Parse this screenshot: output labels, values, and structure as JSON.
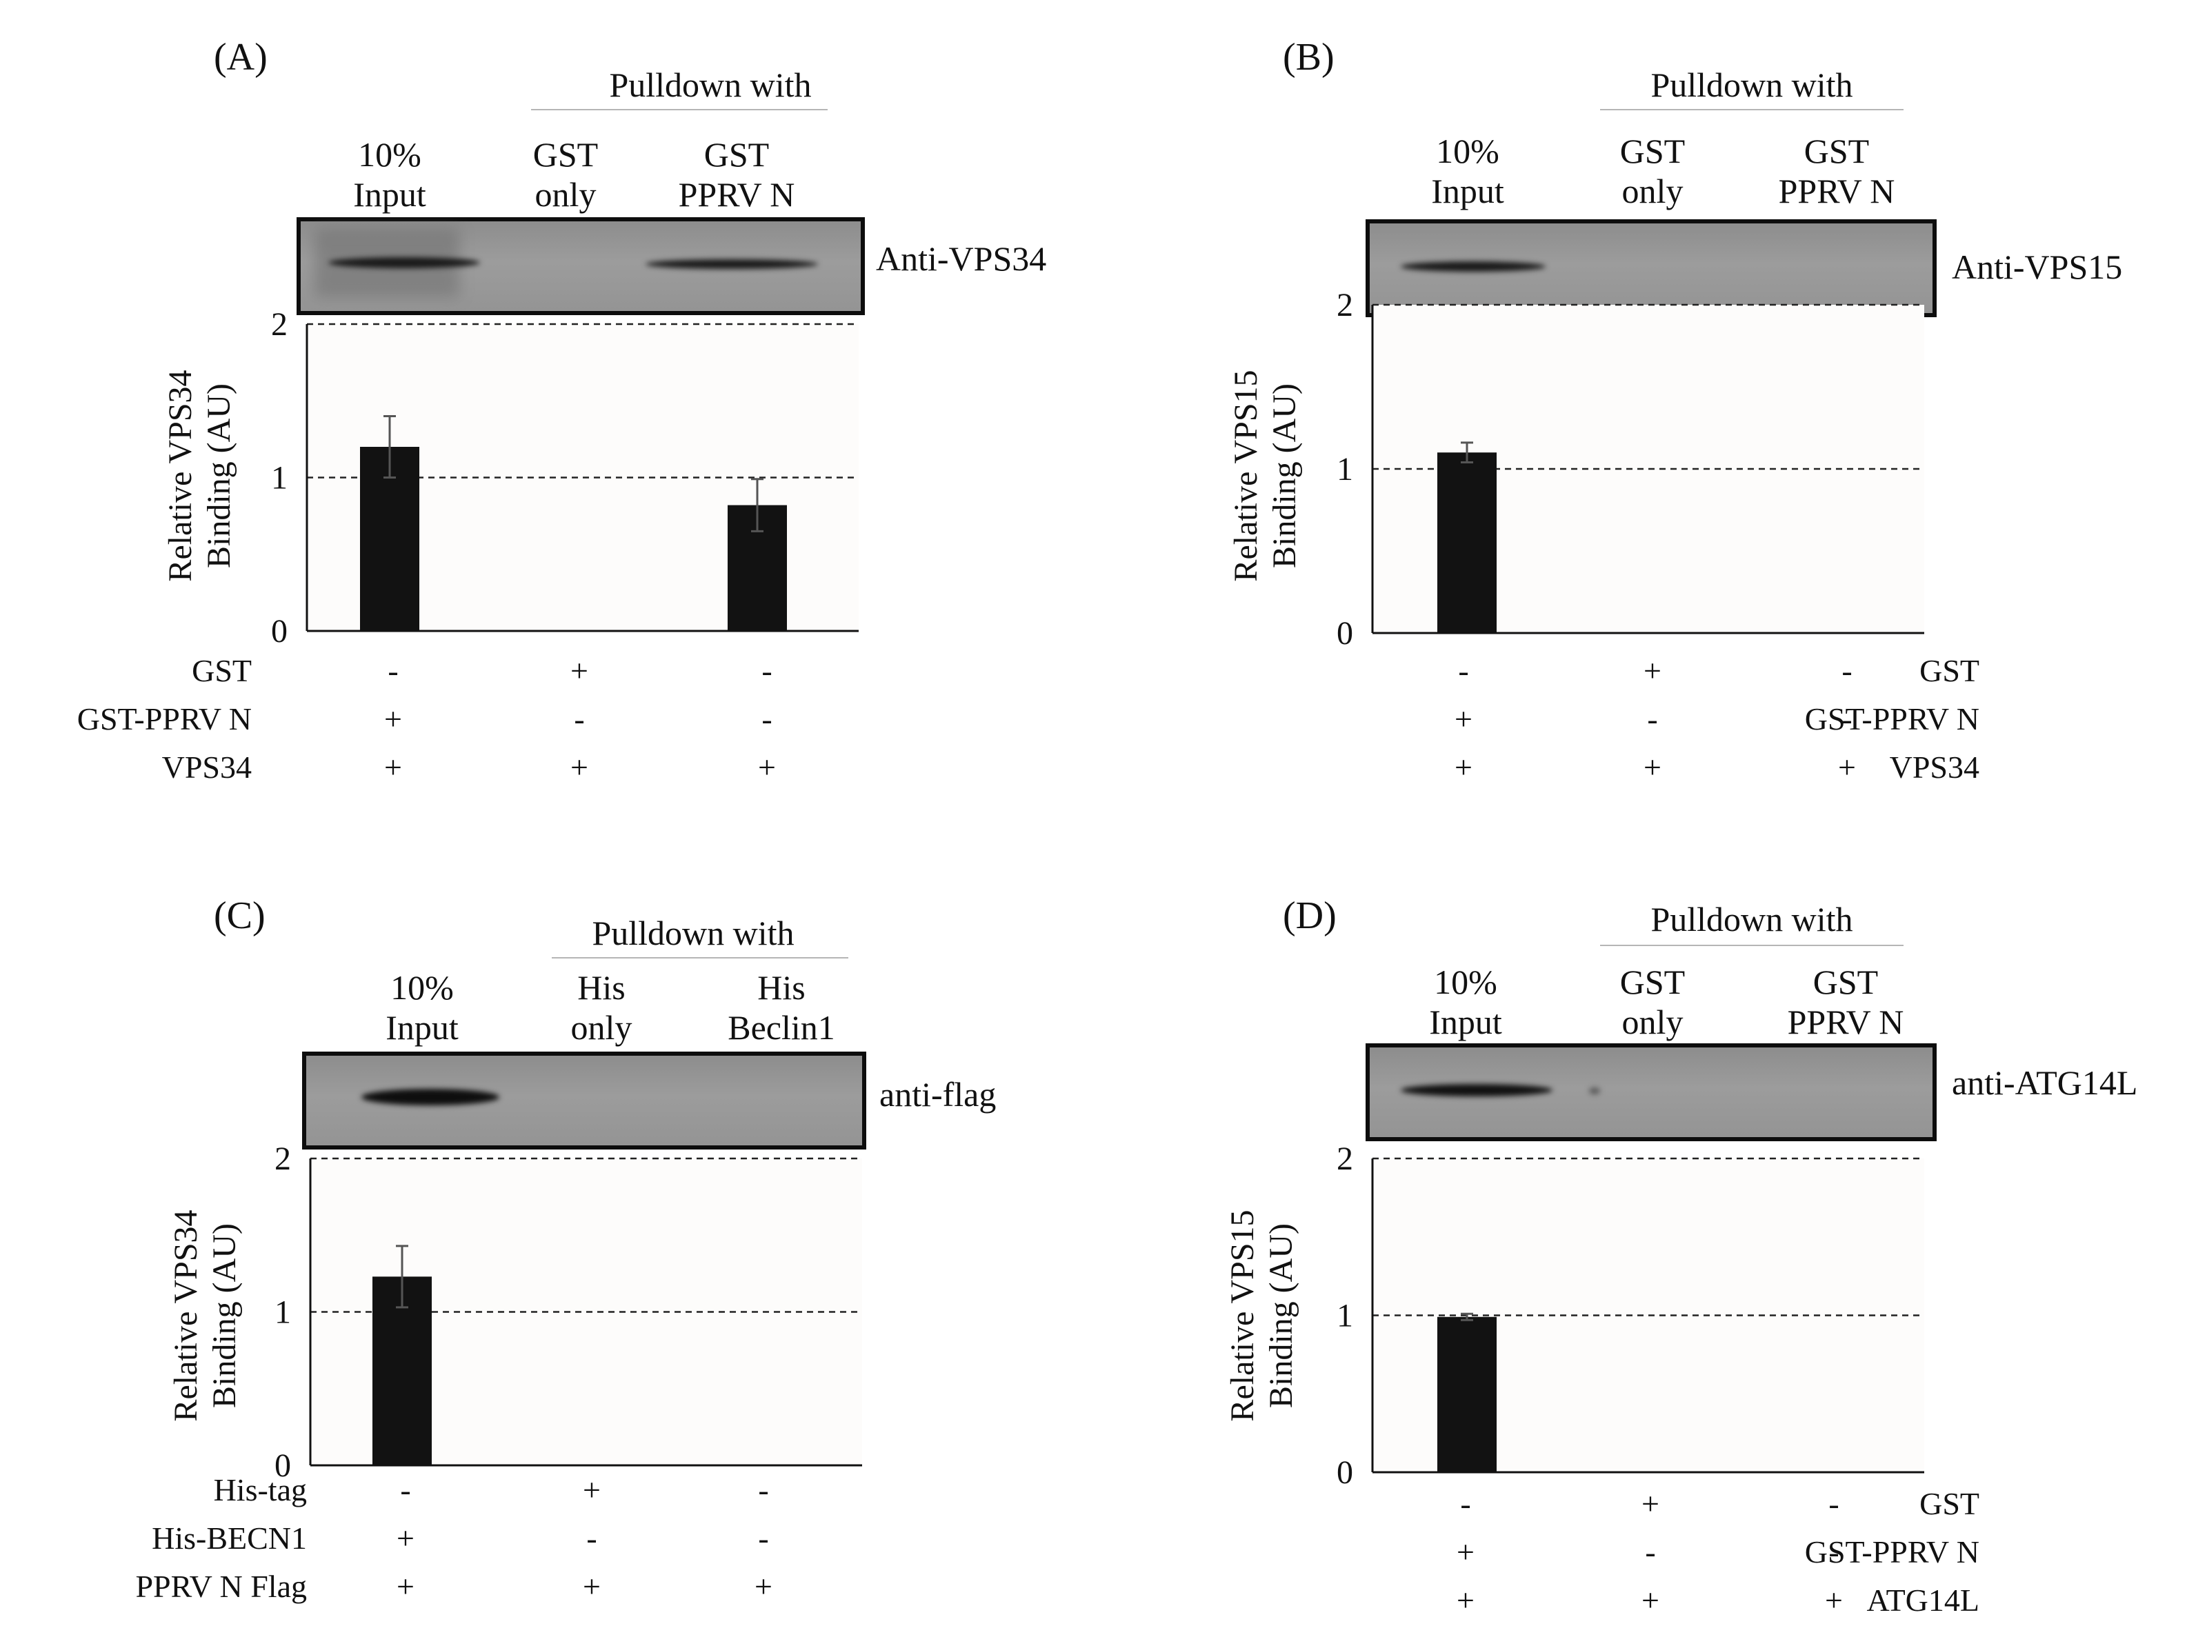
{
  "panels": [
    {
      "id": "A",
      "letter": "(A)",
      "pulldown_header": "Pulldown with",
      "lanes": [
        {
          "line1": "10%",
          "line2": "Input"
        },
        {
          "line1": "GST",
          "line2": "only"
        },
        {
          "line1": "GST",
          "line2": "PPRV N"
        }
      ],
      "antibody": "Anti-VPS34",
      "ylabel_line1": "Relative VPS34",
      "ylabel_line2": "Binding (AU)",
      "rows": [
        {
          "label": "GST",
          "signs": [
            "-",
            "+",
            "-"
          ]
        },
        {
          "label": "GST-PPRV N",
          "signs": [
            "+",
            "-",
            "-"
          ]
        },
        {
          "label": "VPS34",
          "signs": [
            "+",
            "+",
            "+"
          ]
        }
      ]
    },
    {
      "id": "B",
      "letter": "(B)",
      "pulldown_header": "Pulldown with",
      "lanes": [
        {
          "line1": "10%",
          "line2": "Input"
        },
        {
          "line1": "GST",
          "line2": "only"
        },
        {
          "line1": "GST",
          "line2": "PPRV N"
        }
      ],
      "antibody": "Anti-VPS15",
      "ylabel_line1": "Relative VPS15",
      "ylabel_line2": "Binding (AU)",
      "rows": [
        {
          "label": "GST",
          "signs": [
            "-",
            "+",
            "-"
          ]
        },
        {
          "label": "GST-PPRV N",
          "signs": [
            "+",
            "-",
            "-"
          ]
        },
        {
          "label": "VPS34",
          "signs": [
            "+",
            "+",
            "+"
          ]
        }
      ]
    },
    {
      "id": "C",
      "letter": "(C)",
      "pulldown_header": "Pulldown with",
      "lanes": [
        {
          "line1": "10%",
          "line2": "Input"
        },
        {
          "line1": "His",
          "line2": "only"
        },
        {
          "line1": "His",
          "line2": "Beclin1"
        }
      ],
      "antibody": "anti-flag",
      "ylabel_line1": "Relative VPS34",
      "ylabel_line2": "Binding (AU)",
      "rows": [
        {
          "label": "His-tag",
          "signs": [
            "-",
            "+",
            "-"
          ]
        },
        {
          "label": "His-BECN1",
          "signs": [
            "+",
            "-",
            "-"
          ]
        },
        {
          "label": "PPRV N Flag",
          "signs": [
            "+",
            "+",
            "+"
          ]
        }
      ]
    },
    {
      "id": "D",
      "letter": "(D)",
      "pulldown_header": "Pulldown with",
      "lanes": [
        {
          "line1": "10%",
          "line2": "Input"
        },
        {
          "line1": "GST",
          "line2": "only"
        },
        {
          "line1": "GST",
          "line2": "PPRV N"
        }
      ],
      "antibody": "anti-ATG14L",
      "ylabel_line1": "Relative VPS15",
      "ylabel_line2": "Binding (AU)",
      "rows": [
        {
          "label": "GST",
          "signs": [
            "-",
            "+",
            "-"
          ]
        },
        {
          "label": "GST-PPRV N",
          "signs": [
            "+",
            "-",
            "-"
          ]
        },
        {
          "label": "ATG14L",
          "signs": [
            "+",
            "+",
            "+"
          ]
        }
      ]
    }
  ],
  "chart_data": [
    {
      "panel": "A",
      "type": "bar",
      "categories": [
        "10% Input",
        "GST only",
        "GST PPRV N"
      ],
      "values": [
        1.2,
        0,
        0.82
      ],
      "errors": [
        0.2,
        0,
        0.17
      ],
      "ylabel": "Relative VPS34 Binding (AU)",
      "ylim": [
        0,
        2
      ],
      "yticks": [
        "0",
        "1",
        "2"
      ],
      "reference_lines": [
        1,
        2
      ]
    },
    {
      "panel": "B",
      "type": "bar",
      "categories": [
        "10% Input",
        "GST only",
        "GST PPRV N"
      ],
      "values": [
        1.1,
        0,
        0
      ],
      "errors": [
        0.06,
        0,
        0
      ],
      "ylabel": "Relative VPS15 Binding (AU)",
      "ylim": [
        0,
        2
      ],
      "yticks": [
        "0",
        "1",
        "2"
      ],
      "reference_lines": [
        1,
        2
      ]
    },
    {
      "panel": "C",
      "type": "bar",
      "categories": [
        "10% Input",
        "His only",
        "His Beclin1"
      ],
      "values": [
        1.23,
        0,
        0
      ],
      "errors": [
        0.2,
        0,
        0
      ],
      "ylabel": "Relative VPS34 Binding (AU)",
      "ylim": [
        0,
        2
      ],
      "yticks": [
        "0",
        "1",
        "2"
      ],
      "reference_lines": [
        1,
        2
      ]
    },
    {
      "panel": "D",
      "type": "bar",
      "categories": [
        "10% Input",
        "GST only",
        "GST PPRV N"
      ],
      "values": [
        0.99,
        0,
        0
      ],
      "errors": [
        0.02,
        0,
        0
      ],
      "ylabel": "Relative VPS15 Binding (AU)",
      "ylim": [
        0,
        2
      ],
      "yticks": [
        "0",
        "1",
        "2"
      ],
      "reference_lines": [
        1,
        2
      ]
    }
  ]
}
